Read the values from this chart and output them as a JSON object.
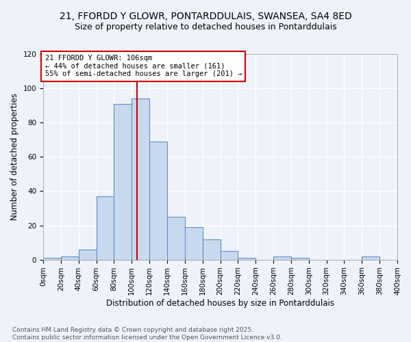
{
  "title_line1": "21, FFORDD Y GLOWR, PONTARDDULAIS, SWANSEA, SA4 8ED",
  "title_line2": "Size of property relative to detached houses in Pontarddulais",
  "xlabel": "Distribution of detached houses by size in Pontarddulais",
  "ylabel": "Number of detached properties",
  "footnote": "Contains HM Land Registry data © Crown copyright and database right 2025.\nContains public sector information licensed under the Open Government Licence v3.0.",
  "bin_edges": [
    0,
    20,
    40,
    60,
    80,
    100,
    120,
    140,
    160,
    180,
    200,
    220,
    240,
    260,
    280,
    300,
    320,
    340,
    360,
    380,
    400
  ],
  "bar_heights": [
    1,
    2,
    6,
    37,
    91,
    94,
    69,
    25,
    19,
    12,
    5,
    1,
    0,
    2,
    1,
    0,
    0,
    0,
    2,
    0
  ],
  "bar_color": "#c9d9ed",
  "bar_edge_color": "#5b8fc9",
  "vline_x": 106,
  "vline_color": "#cc0000",
  "annotation_text": "21 FFORDD Y GLOWR: 106sqm\n← 44% of detached houses are smaller (161)\n55% of semi-detached houses are larger (201) →",
  "annotation_box_color": "white",
  "annotation_box_edge_color": "#cc0000",
  "ylim": [
    0,
    120
  ],
  "yticks": [
    0,
    20,
    40,
    60,
    80,
    100,
    120
  ],
  "xlim": [
    0,
    400
  ],
  "background_color": "#eef2f9",
  "grid_color": "white",
  "title_fontsize": 10,
  "subtitle_fontsize": 9,
  "axis_label_fontsize": 8.5,
  "tick_fontsize": 7.5,
  "annotation_fontsize": 7.5,
  "footnote_fontsize": 6.5
}
